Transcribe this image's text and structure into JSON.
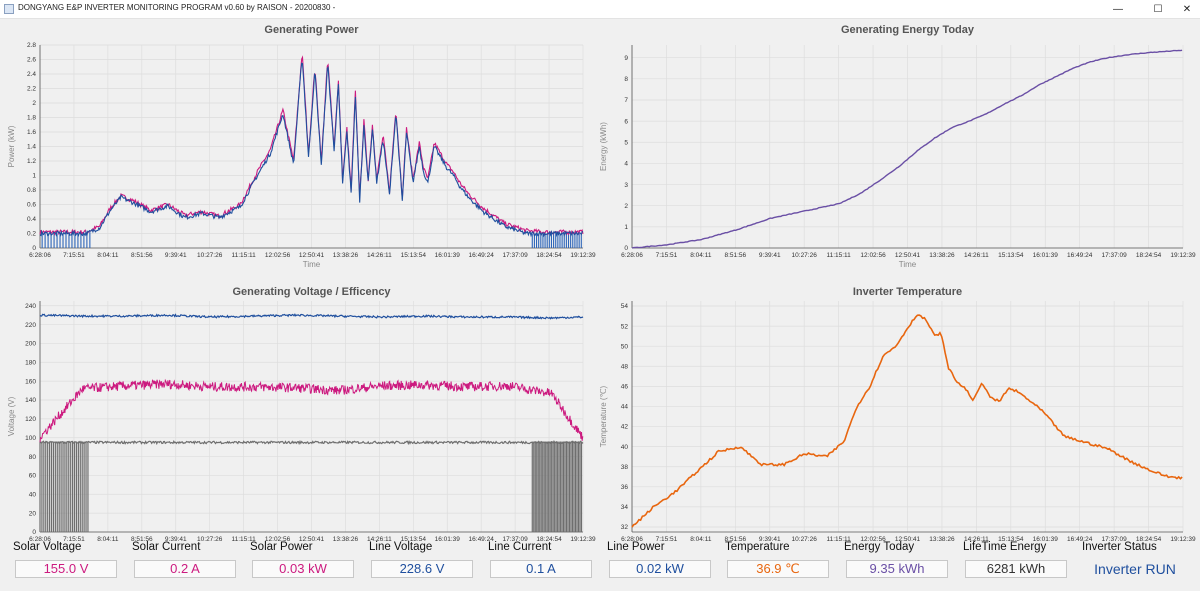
{
  "window": {
    "title": "DONGYANG E&P INVERTER MONITORING PROGRAM  v0.60 by RAISON  -  20200830  -",
    "minimize": "—",
    "maximize": "☐",
    "close": "✕"
  },
  "colors": {
    "pink": "#cc1a7f",
    "blue": "#1f4f9e",
    "blue_fill": "#2c64b8",
    "gray": "#6e6e6e",
    "purple": "#6a4fa5",
    "orange": "#e8660f",
    "grid": "#dddddd",
    "green_gray": "#555555"
  },
  "time_ticks": [
    "6:28:06",
    "7:15:51",
    "8:04:11",
    "8:51:56",
    "9:39:41",
    "10:27:26",
    "11:15:11",
    "12:02:56",
    "12:50:41",
    "13:38:26",
    "14:26:11",
    "15:13:54",
    "16:01:39",
    "16:49:24",
    "17:37:09",
    "18:24:54",
    "19:12:39"
  ],
  "charts": {
    "power": {
      "title": "Generating Power",
      "xlabel": "Time",
      "ylabel": "Power (kW)",
      "yticks": [
        "0",
        "0.2",
        "0.4",
        "0.6",
        "0.8",
        "1",
        "1.2",
        "1.4",
        "1.6",
        "1.8",
        "2",
        "2.2",
        "2.4",
        "2.6",
        "2.8"
      ]
    },
    "energy": {
      "title": "Generating Energy Today",
      "xlabel": "Time",
      "ylabel": "Energy (kWh)",
      "yticks": [
        "0",
        "1",
        "2",
        "3",
        "4",
        "5",
        "6",
        "7",
        "8",
        "9"
      ]
    },
    "voltage": {
      "title": "Generating Voltage / Efficency",
      "xlabel": "Time",
      "ylabel": "Voltage (V)",
      "yticks": [
        "0",
        "20",
        "40",
        "60",
        "80",
        "100",
        "120",
        "140",
        "160",
        "180",
        "200",
        "220",
        "240"
      ]
    },
    "temperature": {
      "title": "Inverter Temperature",
      "xlabel": "Time",
      "ylabel": "Temperature (℃)",
      "yticks": [
        "32",
        "34",
        "36",
        "38",
        "40",
        "42",
        "44",
        "46",
        "48",
        "50",
        "52",
        "54"
      ]
    }
  },
  "chart_data": [
    {
      "type": "line",
      "title": "Generating Power",
      "xlabel": "Time",
      "ylabel": "Power (kW)",
      "ylim": [
        0,
        2.8
      ],
      "x_hours": [
        0,
        0.4,
        0.8,
        1.1,
        1.4,
        1.65,
        1.9,
        2.2,
        2.6,
        3,
        3.4,
        3.8,
        4.2,
        4.7,
        5.1,
        5.4,
        5.7,
        5.95,
        6.15,
        6.3,
        6.45,
        6.6,
        6.75,
        6.9,
        7.0,
        7.1,
        7.2,
        7.3,
        7.4,
        7.5,
        7.6,
        7.7,
        7.8,
        7.9,
        8.05,
        8.2,
        8.35,
        8.5,
        8.6,
        8.75,
        8.9,
        9.0,
        9.1,
        9.25,
        9.4,
        9.55,
        9.7,
        9.85,
        10.05,
        10.4,
        10.9,
        11.4,
        11.8,
        12.2,
        12.45,
        12.74
      ],
      "series": [
        {
          "name": "Line Power",
          "values": [
            0.22,
            0.22,
            0.22,
            0.22,
            0.3,
            0.55,
            0.72,
            0.65,
            0.52,
            0.6,
            0.45,
            0.5,
            0.44,
            0.6,
            1.05,
            1.35,
            1.9,
            1.2,
            2.7,
            1.3,
            2.5,
            1.2,
            2.6,
            1.4,
            2.3,
            0.95,
            1.65,
            0.8,
            2.15,
            0.7,
            1.75,
            0.95,
            1.7,
            0.95,
            1.55,
            0.78,
            1.92,
            0.7,
            1.65,
            0.95,
            1.45,
            1.1,
            0.95,
            1.45,
            1.3,
            1.15,
            1.05,
            0.9,
            0.75,
            0.55,
            0.34,
            0.24,
            0.22,
            0.22,
            0.22,
            0.22
          ]
        },
        {
          "name": "Solar Power",
          "values": [
            0.2,
            0.2,
            0.2,
            0.2,
            0.28,
            0.52,
            0.7,
            0.62,
            0.5,
            0.58,
            0.42,
            0.48,
            0.42,
            0.57,
            1.0,
            1.3,
            1.85,
            1.15,
            2.65,
            1.25,
            2.45,
            1.15,
            2.55,
            1.35,
            2.25,
            0.9,
            1.6,
            0.75,
            2.1,
            0.65,
            1.7,
            0.9,
            1.65,
            0.9,
            1.5,
            0.73,
            1.87,
            0.65,
            1.6,
            0.9,
            1.4,
            1.05,
            0.9,
            1.4,
            1.25,
            1.1,
            1.0,
            0.85,
            0.7,
            0.5,
            0.3,
            0.2,
            0.2,
            0.2,
            0.2,
            0.2
          ]
        }
      ]
    },
    {
      "type": "line",
      "title": "Generating Energy Today",
      "xlabel": "Time",
      "ylabel": "Energy (kWh)",
      "ylim": [
        0,
        9.6
      ],
      "x_hours": [
        0,
        0.8,
        1.6,
        2.4,
        3.2,
        4.0,
        4.8,
        5.3,
        5.8,
        6.2,
        6.6,
        7.0,
        7.4,
        7.8,
        8.2,
        8.6,
        9.0,
        9.4,
        9.8,
        10.2,
        10.6,
        11.0,
        11.5,
        12.0,
        12.74
      ],
      "series": [
        {
          "name": "Energy",
          "values": [
            0,
            0.15,
            0.4,
            0.85,
            1.4,
            1.75,
            2.1,
            2.6,
            3.3,
            3.9,
            4.6,
            5.2,
            5.7,
            6.0,
            6.35,
            6.8,
            7.2,
            7.7,
            8.1,
            8.5,
            8.8,
            9.0,
            9.15,
            9.25,
            9.35
          ]
        }
      ]
    },
    {
      "type": "line",
      "title": "Generating Voltage / Efficency",
      "xlabel": "Time",
      "ylabel": "Voltage (V)",
      "ylim": [
        0,
        245
      ],
      "x_hours": [
        0,
        1,
        2,
        3,
        4,
        5,
        6,
        7,
        8,
        9,
        10,
        11,
        12,
        12.74
      ],
      "series": [
        {
          "name": "Line Voltage",
          "values": [
            230,
            229,
            229,
            230,
            228,
            229,
            230,
            229,
            228,
            229,
            228,
            228,
            227,
            228
          ]
        },
        {
          "name": "Solar Voltage",
          "values": [
            100,
            152,
            155,
            157,
            154,
            154,
            153,
            150,
            155,
            156,
            154,
            155,
            147,
            100
          ]
        },
        {
          "name": "Efficiency",
          "values": [
            95,
            95,
            95,
            95,
            95,
            95,
            95,
            95,
            95,
            95,
            95,
            95,
            95,
            95
          ]
        }
      ]
    },
    {
      "type": "line",
      "title": "Inverter Temperature",
      "xlabel": "Time",
      "ylabel": "Temperature (℃)",
      "ylim": [
        31.5,
        54.5
      ],
      "x_hours": [
        0,
        0.5,
        1.0,
        1.5,
        2.0,
        2.5,
        3.0,
        3.5,
        4.0,
        4.5,
        4.9,
        5.2,
        5.5,
        5.8,
        6.1,
        6.4,
        6.6,
        6.8,
        7.0,
        7.15,
        7.3,
        7.5,
        7.7,
        7.9,
        8.1,
        8.3,
        8.5,
        8.7,
        8.9,
        9.1,
        9.5,
        10.0,
        10.5,
        11.0,
        11.5,
        12.0,
        12.4,
        12.74
      ],
      "series": [
        {
          "name": "Temperature",
          "values": [
            32,
            34,
            35.5,
            37.5,
            39.5,
            40,
            38.2,
            38.2,
            39.3,
            39,
            40.5,
            44,
            46,
            49,
            50,
            52,
            53.2,
            52.6,
            51,
            51.3,
            48,
            46.5,
            45.8,
            44.6,
            46.4,
            44.8,
            44.5,
            45.8,
            45.5,
            44.9,
            43.5,
            41,
            40.4,
            39.8,
            38.6,
            37.6,
            37.0,
            36.9
          ]
        }
      ]
    }
  ],
  "stats": [
    {
      "label": "Solar Voltage",
      "value": "155.0 V",
      "color": "#cc1a7f"
    },
    {
      "label": "Solar Current",
      "value": "0.2 A",
      "color": "#cc1a7f"
    },
    {
      "label": "Solar Power",
      "value": "0.03 kW",
      "color": "#cc1a7f"
    },
    {
      "label": "Line Voltage",
      "value": "228.6 V",
      "color": "#1f4f9e"
    },
    {
      "label": "Line Current",
      "value": "0.1 A",
      "color": "#1f4f9e"
    },
    {
      "label": "Line Power",
      "value": "0.02 kW",
      "color": "#1f4f9e"
    },
    {
      "label": "Temperature",
      "value": "36.9 ℃",
      "color": "#e8660f"
    },
    {
      "label": "Energy Today",
      "value": "9.35 kWh",
      "color": "#6a4fa5"
    },
    {
      "label": "LifeTime Energy",
      "value": "6281 kWh",
      "color": "#333333"
    },
    {
      "label": "Inverter Status",
      "value": "Inverter RUN",
      "color": "#1f4f9e"
    }
  ]
}
